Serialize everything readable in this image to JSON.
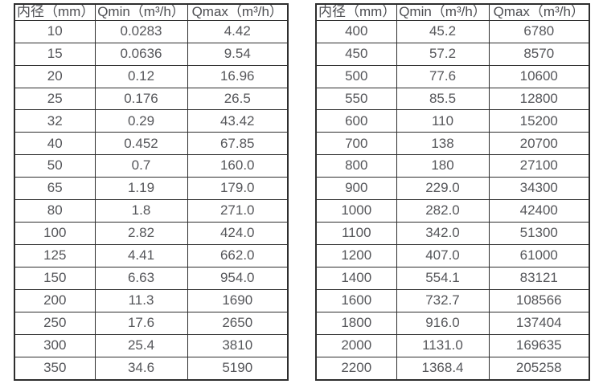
{
  "page": {
    "background_color": "#ffffff",
    "border_color": "#2e2e2e",
    "text_color": "#55565a"
  },
  "chart_data": [
    {
      "type": "table",
      "name": "flow-rate-table-small-diameters",
      "columns": [
        "内径（mm）",
        "Qmin（m³/h）",
        "Qmax（m³/h）"
      ],
      "rows": [
        [
          "10",
          "0.0283",
          "4.42"
        ],
        [
          "15",
          "0.0636",
          "9.54"
        ],
        [
          "20",
          "0.12",
          "16.96"
        ],
        [
          "25",
          "0.176",
          "26.5"
        ],
        [
          "32",
          "0.29",
          "43.42"
        ],
        [
          "40",
          "0.452",
          "67.85"
        ],
        [
          "50",
          "0.7",
          "160.0"
        ],
        [
          "65",
          "1.19",
          "179.0"
        ],
        [
          "80",
          "1.8",
          "271.0"
        ],
        [
          "100",
          "2.82",
          "424.0"
        ],
        [
          "125",
          "4.41",
          "662.0"
        ],
        [
          "150",
          "6.63",
          "954.0"
        ],
        [
          "200",
          "11.3",
          "1690"
        ],
        [
          "250",
          "17.6",
          "2650"
        ],
        [
          "300",
          "25.4",
          "3810"
        ],
        [
          "350",
          "34.6",
          "5190"
        ]
      ]
    },
    {
      "type": "table",
      "name": "flow-rate-table-large-diameters",
      "columns": [
        "内径（mm）",
        "Qmin（m³/h）",
        "Qmax（m³/h）"
      ],
      "rows": [
        [
          "400",
          "45.2",
          "6780"
        ],
        [
          "450",
          "57.2",
          "8570"
        ],
        [
          "500",
          "77.6",
          "10600"
        ],
        [
          "550",
          "85.5",
          "12800"
        ],
        [
          "600",
          "110",
          "15200"
        ],
        [
          "700",
          "138",
          "20700"
        ],
        [
          "800",
          "180",
          "27100"
        ],
        [
          "900",
          "229.0",
          "34300"
        ],
        [
          "1000",
          "282.0",
          "42400"
        ],
        [
          "1100",
          "342.0",
          "51300"
        ],
        [
          "1200",
          "407.0",
          "61000"
        ],
        [
          "1400",
          "554.1",
          "83121"
        ],
        [
          "1600",
          "732.7",
          "108566"
        ],
        [
          "1800",
          "916.0",
          "137404"
        ],
        [
          "2000",
          "1131.0",
          "169635"
        ],
        [
          "2200",
          "1368.4",
          "205258"
        ]
      ]
    }
  ]
}
